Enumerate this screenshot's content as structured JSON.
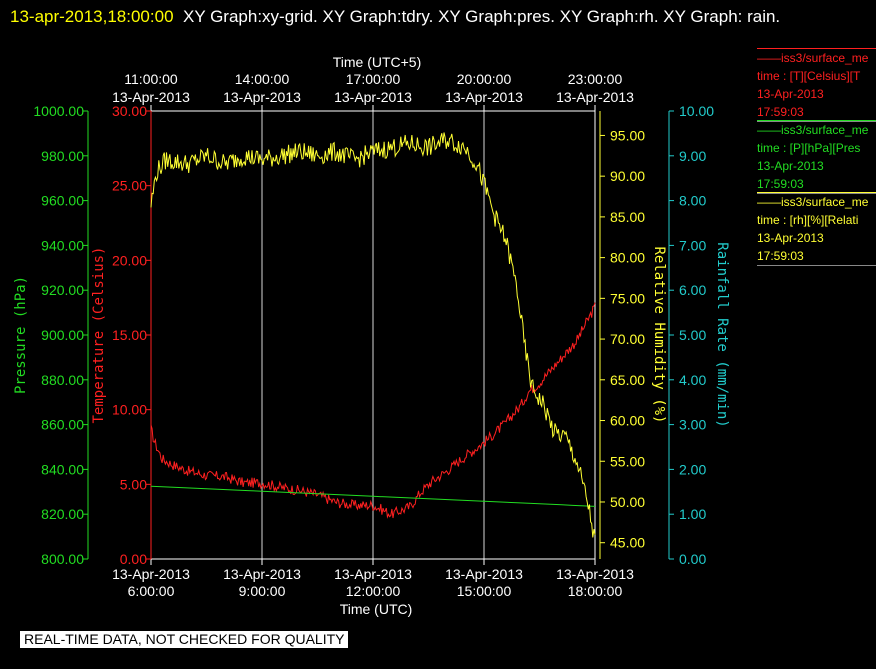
{
  "header": {
    "timestamp": "13-apr-2013,18:00:00",
    "title_rest": "XY Graph:xy-grid.  XY Graph:tdry.  XY Graph:pres.  XY Graph:rh.  XY Graph: rain."
  },
  "legend": [
    {
      "line1": "iss3/surface_me",
      "line2": "time : [T][Celsius][T",
      "line3": "13-Apr-2013",
      "line4": "17:59:03",
      "color": "#ff2020"
    },
    {
      "line1": "iss3/surface_me",
      "line2": "time : [P][hPa][Pres",
      "line3": "13-Apr-2013",
      "line4": "17:59:03",
      "color": "#22dd22"
    },
    {
      "line1": "iss3/surface_me",
      "line2": "time : [rh][%][Relati",
      "line3": "13-Apr-2013",
      "line4": "17:59:03",
      "color": "#ffff33"
    }
  ],
  "footer": "REAL-TIME DATA, NOT CHECKED FOR QUALITY",
  "chart_data": {
    "type": "line",
    "x_range": [
      "13-Apr-2013 6:00:00",
      "13-Apr-2013 18:00:00"
    ],
    "top_axis_title": "Time (UTC+5)",
    "bottom_axis_title": "Time (UTC)",
    "top_ticks": [
      {
        "time": "11:00:00",
        "date": "13-Apr-2013"
      },
      {
        "time": "14:00:00",
        "date": "13-Apr-2013"
      },
      {
        "time": "17:00:00",
        "date": "13-Apr-2013"
      },
      {
        "time": "20:00:00",
        "date": "13-Apr-2013"
      },
      {
        "time": "23:00:00",
        "date": "13-Apr-2013"
      }
    ],
    "bottom_ticks": [
      {
        "date": "13-Apr-2013",
        "time": "6:00:00"
      },
      {
        "date": "13-Apr-2013",
        "time": "9:00:00"
      },
      {
        "date": "13-Apr-2013",
        "time": "12:00:00"
      },
      {
        "date": "13-Apr-2013",
        "time": "15:00:00"
      },
      {
        "date": "13-Apr-2013",
        "time": "18:00:00"
      }
    ],
    "grid": "vertical",
    "axes": {
      "pressure": {
        "label": "Pressure (hPa)",
        "min": 800,
        "max": 1000,
        "color": "#22dd22",
        "ticks": [
          "800.00",
          "820.00",
          "840.00",
          "860.00",
          "880.00",
          "900.00",
          "920.00",
          "940.00",
          "960.00",
          "980.00",
          "1000.00"
        ]
      },
      "temperature": {
        "label": "Temperature (Celsius)",
        "min": 0,
        "max": 30,
        "color": "#ff2020",
        "ticks": [
          "0.00",
          "5.00",
          "10.00",
          "15.00",
          "20.00",
          "25.00",
          "30.00"
        ]
      },
      "humidity": {
        "label": "Relative Humidity (%)",
        "min": 43,
        "max": 98,
        "color": "#ffff33",
        "ticks": [
          "45.00",
          "50.00",
          "55.00",
          "60.00",
          "65.00",
          "70.00",
          "75.00",
          "80.00",
          "85.00",
          "90.00",
          "95.00"
        ]
      },
      "rain": {
        "label": "Rainfall Rate (mm/min)",
        "min": 0,
        "max": 10,
        "color": "#22cccc",
        "ticks": [
          "0.00",
          "1.00",
          "2.00",
          "3.00",
          "4.00",
          "5.00",
          "6.00",
          "7.00",
          "8.00",
          "9.00",
          "10.00"
        ]
      }
    },
    "series": [
      {
        "axis": "temperature",
        "color": "#ff2020",
        "hours": [
          6.0,
          6.1,
          6.3,
          6.6,
          7.0,
          7.5,
          8.0,
          8.5,
          9.0,
          9.5,
          10.0,
          10.5,
          11.0,
          11.5,
          12.0,
          12.5,
          13.0,
          13.3,
          13.6,
          14.0,
          14.5,
          15.0,
          15.5,
          16.0,
          16.2,
          16.5,
          17.0,
          17.5,
          18.0
        ],
        "values": [
          8.7,
          7.8,
          6.7,
          6.3,
          5.9,
          5.6,
          5.5,
          5.1,
          5.1,
          4.8,
          4.6,
          4.3,
          3.8,
          3.6,
          3.6,
          3.0,
          3.5,
          4.5,
          5.2,
          5.9,
          6.9,
          7.8,
          8.9,
          10.3,
          11.2,
          11.8,
          13.2,
          14.6,
          16.9
        ]
      },
      {
        "axis": "pressure",
        "color": "#22dd22",
        "hours": [
          6.0,
          18.0
        ],
        "values": [
          832.5,
          823.5
        ]
      },
      {
        "axis": "humidity",
        "color": "#ffff33",
        "hours": [
          6.0,
          6.15,
          6.4,
          7.0,
          7.5,
          8.0,
          8.5,
          9.0,
          9.5,
          10.0,
          10.5,
          11.0,
          11.5,
          12.0,
          12.5,
          13.0,
          13.5,
          14.0,
          14.5,
          14.8,
          15.0,
          15.3,
          15.6,
          15.9,
          16.1,
          16.3,
          16.6,
          16.9,
          17.2,
          17.5,
          17.8,
          18.0
        ],
        "values": [
          86.5,
          90.5,
          92.0,
          91.5,
          92.5,
          91.5,
          92.5,
          92.0,
          92.5,
          93.0,
          92.5,
          93.0,
          92.0,
          93.0,
          93.5,
          94.0,
          93.5,
          94.5,
          93.5,
          91.5,
          89.0,
          85.0,
          82.0,
          76.0,
          69.0,
          64.0,
          62.0,
          58.5,
          58.0,
          55.0,
          50.0,
          45.0
        ]
      }
    ]
  }
}
